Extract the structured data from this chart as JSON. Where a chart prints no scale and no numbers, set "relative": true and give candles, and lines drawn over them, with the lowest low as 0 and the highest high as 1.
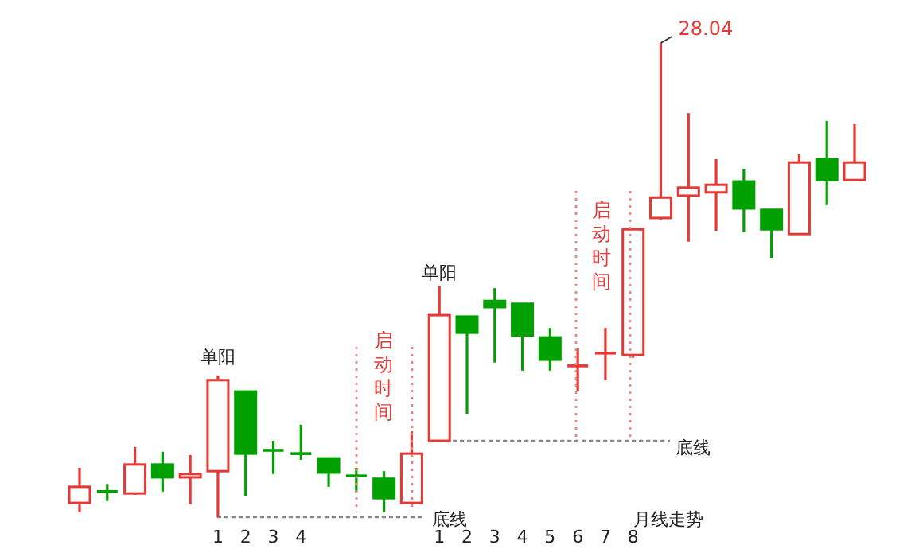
{
  "chart_data": {
    "type": "candlestick",
    "relative": true,
    "categories": [
      null,
      null,
      null,
      null,
      null,
      "1",
      "2",
      "3",
      "4",
      null,
      null,
      null,
      null,
      "1",
      "2",
      "3",
      "4",
      "5",
      "6",
      "7",
      "8",
      null,
      null,
      null,
      null,
      null,
      null,
      null,
      null
    ],
    "ohlc": [
      [
        0.03,
        0.104,
        0.01,
        0.064
      ],
      [
        0.054,
        0.07,
        0.034,
        0.054
      ],
      [
        0.05,
        0.148,
        0.047,
        0.111
      ],
      [
        0.111,
        0.138,
        0.054,
        0.084
      ],
      [
        0.084,
        0.131,
        0.027,
        0.091
      ],
      [
        0.097,
        0.299,
        0,
        0.289
      ],
      [
        0.265,
        0.265,
        0.044,
        0.134
      ],
      [
        0.141,
        0.161,
        0.091,
        0.141
      ],
      [
        0.134,
        0.195,
        0.121,
        0.134
      ],
      [
        0.124,
        0.124,
        0.064,
        0.094
      ],
      [
        0.087,
        0.104,
        0.054,
        0.087
      ],
      [
        0.081,
        0.097,
        0.01,
        0.04
      ],
      [
        0.03,
        0.181,
        0.027,
        0.134
      ],
      [
        0.161,
        0.487,
        0.161,
        0.426
      ],
      [
        0.423,
        0.423,
        0.218,
        0.389
      ],
      [
        0.456,
        0.483,
        0.326,
        0.443
      ],
      [
        0.45,
        0.45,
        0.309,
        0.383
      ],
      [
        0.379,
        0.399,
        0.309,
        0.332
      ],
      [
        0.319,
        0.356,
        0.265,
        0.319
      ],
      [
        0.346,
        0.399,
        0.289,
        0.346
      ],
      [
        0.342,
        0.607,
        0.336,
        0.607
      ],
      [
        0.631,
        1,
        0.628,
        0.674
      ],
      [
        0.678,
        0.852,
        0.581,
        0.695
      ],
      [
        0.685,
        0.755,
        0.604,
        0.701
      ],
      [
        0.708,
        0.735,
        0.601,
        0.651
      ],
      [
        0.648,
        0.648,
        0.547,
        0.607
      ],
      [
        0.597,
        0.765,
        0.597,
        0.748
      ],
      [
        0.755,
        0.836,
        0.658,
        0.711
      ],
      [
        0.711,
        0.829,
        0.711,
        0.748
      ]
    ],
    "colors": [
      "#e53935",
      "#00a000",
      "#e53935",
      "#00a000",
      "#e53935",
      "#e53935",
      "#00a000",
      "#00a000",
      "#00a000",
      "#00a000",
      "#00a000",
      "#00a000",
      "#e53935",
      "#e53935",
      "#00a000",
      "#00a000",
      "#00a000",
      "#00a000",
      "#e53935",
      "#e53935",
      "#e53935",
      "#e53935",
      "#e53935",
      "#e53935",
      "#00a000",
      "#00a000",
      "#e53935",
      "#00a000",
      "#e53935"
    ],
    "ref_lines": [
      {
        "axis": "y",
        "value": 0,
        "label": "底线",
        "color": "#888888",
        "line_style": "dotted"
      },
      {
        "axis": "y",
        "value": 0.161,
        "label": "底线",
        "color": "#888888",
        "line_style": "dotted"
      }
    ],
    "annotations": [
      "单阳",
      "单阳",
      {
        "text": "启动时间"
      },
      {
        "text": "启动时间"
      },
      "月线走势",
      "28.04"
    ]
  }
}
